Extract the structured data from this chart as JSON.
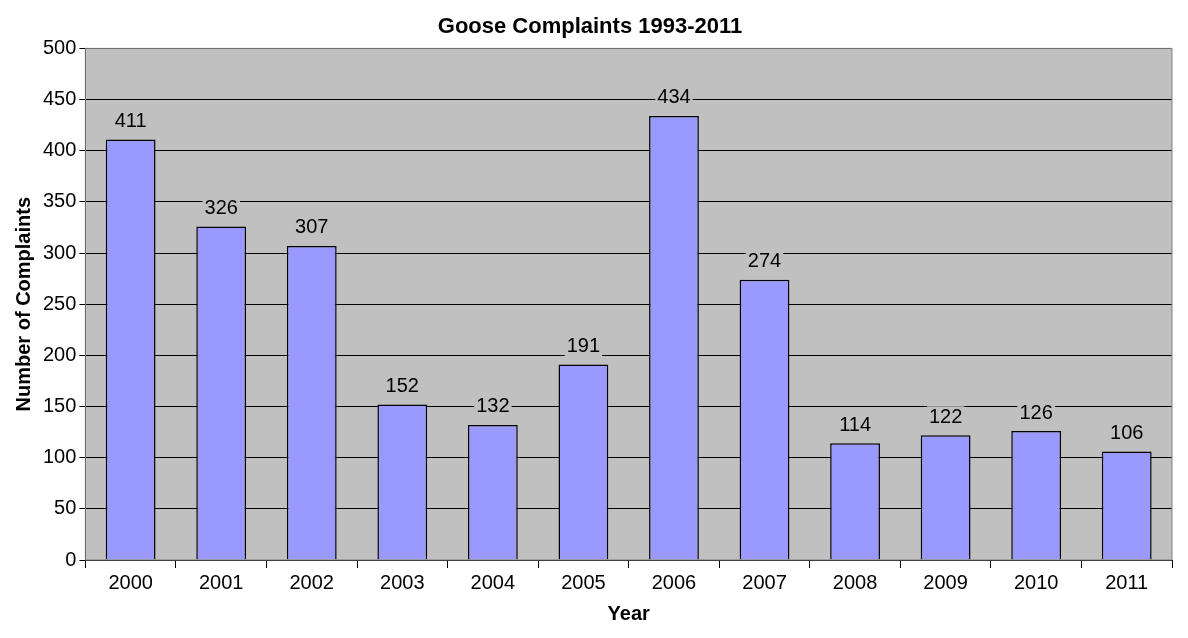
{
  "chart_data": {
    "type": "bar",
    "title": "Goose Complaints 1993-2011",
    "xlabel": "Year",
    "ylabel": "Number of Complaints",
    "categories": [
      "2000",
      "2001",
      "2002",
      "2003",
      "2004",
      "2005",
      "2006",
      "2007",
      "2008",
      "2009",
      "2010",
      "2011"
    ],
    "values": [
      411,
      326,
      307,
      152,
      132,
      191,
      434,
      274,
      114,
      122,
      126,
      106
    ],
    "color": "#9999ff",
    "ylim": [
      0,
      500
    ],
    "yticks": [
      0,
      50,
      100,
      150,
      200,
      250,
      300,
      350,
      400,
      450,
      500
    ],
    "grid": "y",
    "data_labels": true,
    "legend": false
  }
}
